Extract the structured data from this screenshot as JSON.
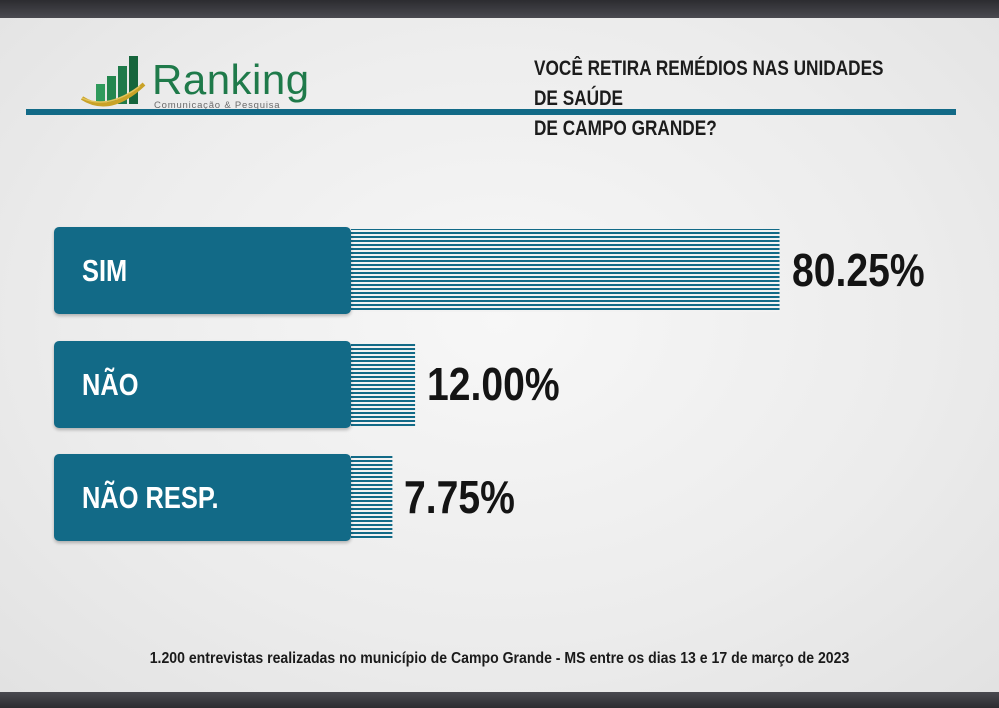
{
  "brand": {
    "name": "Ranking",
    "tagline": "Comunicação & Pesquisa",
    "colors": {
      "green": "#1f7a4a",
      "gold": "#c9a227"
    }
  },
  "question": "VOCÊ RETIRA REMÉDIOS NAS UNIDADES DE SAÚDE\nDE CAMPO GRANDE?",
  "footnote": "1.200 entrevistas realizadas no município de Campo Grande - MS entre os dias 13 e 17 de março de 2023",
  "colors": {
    "accent": "#126a87",
    "text": "#141414",
    "background": "#ececec"
  },
  "chart_data": {
    "type": "bar",
    "orientation": "horizontal",
    "title": "VOCÊ RETIRA REMÉDIOS NAS UNIDADES DE SAÚDE DE CAMPO GRANDE?",
    "categories": [
      "SIM",
      "NÃO",
      "NÃO RESP."
    ],
    "values": [
      80.25,
      12.0,
      7.75
    ],
    "value_labels": [
      "80.25%",
      "12.00%",
      "7.75%"
    ],
    "unit": "%",
    "xlim": [
      0,
      100
    ],
    "grid": false,
    "legend": "none",
    "bar_color": "#126a87",
    "bar_style": "striped"
  }
}
